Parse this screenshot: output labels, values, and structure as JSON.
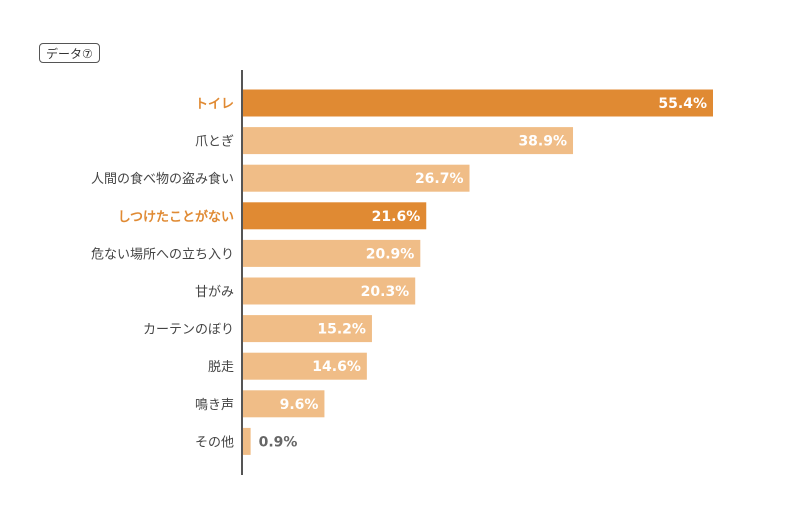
{
  "badge": "データ⑦",
  "chart_data": {
    "type": "bar",
    "orientation": "horizontal",
    "categories": [
      "トイレ",
      "爪とぎ",
      "人間の食べ物の盗み食い",
      "しつけたことがない",
      "危ない場所への立ち入り",
      "甘がみ",
      "カーテンのぼり",
      "脱走",
      "鳴き声",
      "その他"
    ],
    "values": [
      55.4,
      38.9,
      26.7,
      21.6,
      20.9,
      20.3,
      15.2,
      14.6,
      9.6,
      0.9
    ],
    "value_labels": [
      "55.4%",
      "38.9%",
      "26.7%",
      "21.6%",
      "20.9%",
      "20.3%",
      "15.2%",
      "14.6%",
      "9.6%",
      "0.9%"
    ],
    "highlighted": [
      true,
      false,
      false,
      true,
      false,
      false,
      false,
      false,
      false,
      false
    ],
    "xlim": [
      0,
      60
    ],
    "grid": false,
    "colors": {
      "highlight": "#E08A33",
      "normal": "#F0BD87",
      "highlight_label": "#E08A33",
      "normal_label": "#444444",
      "value_on_bar": "#ffffff",
      "value_outside": "#666666",
      "axis": "#555555"
    }
  }
}
